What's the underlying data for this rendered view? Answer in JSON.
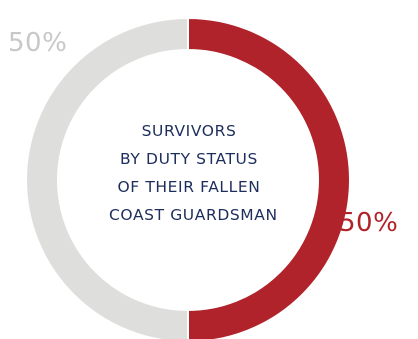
{
  "chart_data": {
    "type": "pie",
    "donut": true,
    "title_lines": [
      "SURVIVORS",
      "BY DUTY STATUS",
      "OF THEIR FALLEN",
      "COAST GUARDSMAN"
    ],
    "slices": [
      {
        "label": "50%",
        "value": 50,
        "color": "#b0232a"
      },
      {
        "label": "50%",
        "value": 50,
        "color": "#dededd"
      }
    ]
  }
}
